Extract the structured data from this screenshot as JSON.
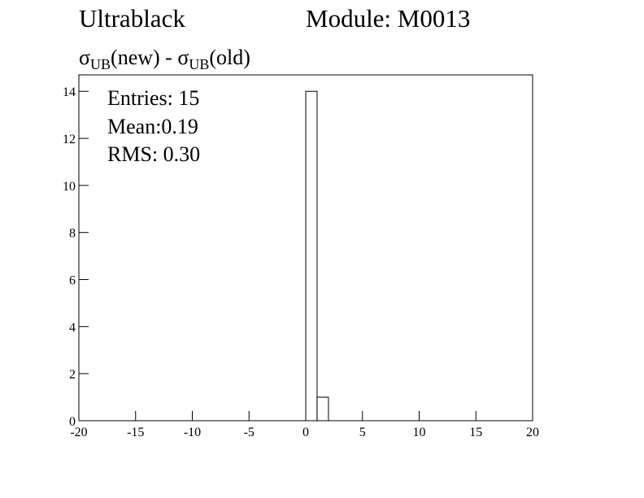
{
  "chart_data": {
    "type": "histogram",
    "title": "Ultrablack",
    "module": "Module: M0013",
    "subtitle_parts": [
      "σ",
      "UB",
      "(new) - ",
      "σ",
      "UB",
      "(old)"
    ],
    "stats": [
      "Entries:  15",
      "Mean:0.19",
      "RMS: 0.30"
    ],
    "bins": [
      -20,
      -19,
      -18,
      -17,
      -16,
      -15,
      -14,
      -13,
      -12,
      -11,
      -10,
      -9,
      -8,
      -7,
      -6,
      -5,
      -4,
      -3,
      -2,
      -1,
      0,
      1,
      2,
      3,
      4,
      5,
      6,
      7,
      8,
      9,
      10,
      11,
      12,
      13,
      14,
      15,
      16,
      17,
      18,
      19,
      20
    ],
    "counts": [
      0,
      0,
      0,
      0,
      0,
      0,
      0,
      0,
      0,
      0,
      0,
      0,
      0,
      0,
      0,
      0,
      0,
      0,
      0,
      0,
      14,
      1,
      0,
      0,
      0,
      0,
      0,
      0,
      0,
      0,
      0,
      0,
      0,
      0,
      0,
      0,
      0,
      0,
      0,
      0
    ],
    "color": "#000000",
    "xlim": [
      -20,
      20
    ],
    "xticks": [
      -20,
      -15,
      -10,
      -5,
      0,
      5,
      10,
      15,
      20
    ],
    "ylim": [
      0,
      14.7
    ],
    "yticks": [
      0,
      2,
      4,
      6,
      8,
      10,
      12,
      14
    ]
  }
}
